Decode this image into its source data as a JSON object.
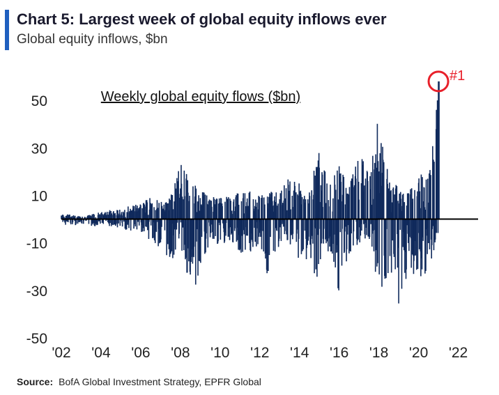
{
  "title": "Chart 5: Largest week of global equity inflows ever",
  "subtitle": "Global equity inflows, $bn",
  "source_label": "Source:",
  "source_text": "BofA Global Investment Strategy, EPFR Global",
  "colors": {
    "accent": "#1f5fbf",
    "bars": "#102a5c",
    "highlight": "#e8202a",
    "axis": "#000000",
    "text": "#222222"
  },
  "chart_data": {
    "type": "bar",
    "title": "Weekly global equity flows ($bn)",
    "xlabel": "",
    "ylabel": "",
    "ylim": [
      -50,
      60
    ],
    "yticks": [
      {
        "value": 50,
        "label": "50"
      },
      {
        "value": 30,
        "label": "30"
      },
      {
        "value": 10,
        "label": "10"
      },
      {
        "value": -10,
        "label": "-10"
      },
      {
        "value": -30,
        "label": "-30"
      },
      {
        "value": -50,
        "label": "-50"
      }
    ],
    "xlim": [
      2002,
      2023
    ],
    "xticks": [
      {
        "value": 2002,
        "label": "'02"
      },
      {
        "value": 2004,
        "label": "'04"
      },
      {
        "value": 2006,
        "label": "'06"
      },
      {
        "value": 2008,
        "label": "'08"
      },
      {
        "value": 2010,
        "label": "'10"
      },
      {
        "value": 2012,
        "label": "'12"
      },
      {
        "value": 2014,
        "label": "'14"
      },
      {
        "value": 2016,
        "label": "'16"
      },
      {
        "value": 2018,
        "label": "'18"
      },
      {
        "value": 2020,
        "label": "'20"
      },
      {
        "value": 2022,
        "label": "'22"
      }
    ],
    "grid": false,
    "envelope": {
      "note": "approximate weekly extremes (year, max inflow, max outflow) in $bn",
      "points": [
        [
          2002.0,
          2,
          -2
        ],
        [
          2002.5,
          2,
          -3
        ],
        [
          2003.0,
          1,
          -2
        ],
        [
          2003.5,
          2,
          -3
        ],
        [
          2004.0,
          3,
          -3
        ],
        [
          2004.5,
          4,
          -3
        ],
        [
          2005.0,
          4,
          -4
        ],
        [
          2005.5,
          6,
          -5
        ],
        [
          2006.0,
          7,
          -6
        ],
        [
          2006.5,
          9,
          -10
        ],
        [
          2007.0,
          8,
          -12
        ],
        [
          2007.5,
          10,
          -18
        ],
        [
          2008.0,
          24,
          -12
        ],
        [
          2008.5,
          17,
          -29
        ],
        [
          2009.0,
          12,
          -29
        ],
        [
          2009.5,
          10,
          -8
        ],
        [
          2010.0,
          9,
          -12
        ],
        [
          2010.5,
          10,
          -9
        ],
        [
          2011.0,
          12,
          -17
        ],
        [
          2011.5,
          12,
          -16
        ],
        [
          2012.0,
          11,
          -10
        ],
        [
          2012.5,
          12,
          -28
        ],
        [
          2013.0,
          12,
          -10
        ],
        [
          2013.5,
          18,
          -12
        ],
        [
          2014.0,
          15,
          -17
        ],
        [
          2014.5,
          12,
          -18
        ],
        [
          2015.0,
          32,
          -28
        ],
        [
          2015.5,
          16,
          -12
        ],
        [
          2016.0,
          25,
          -32
        ],
        [
          2016.5,
          15,
          -15
        ],
        [
          2017.0,
          27,
          -10
        ],
        [
          2017.5,
          24,
          -8
        ],
        [
          2018.0,
          44,
          -30
        ],
        [
          2018.5,
          18,
          -28
        ],
        [
          2019.0,
          14,
          -40
        ],
        [
          2019.5,
          12,
          -22
        ],
        [
          2020.0,
          20,
          -25
        ],
        [
          2020.5,
          17,
          -22
        ],
        [
          2021.0,
          58,
          -6
        ]
      ]
    },
    "annotations": [
      {
        "text": "#1",
        "x": 2021.0,
        "y": 58,
        "style": "red circle around peak"
      }
    ]
  }
}
